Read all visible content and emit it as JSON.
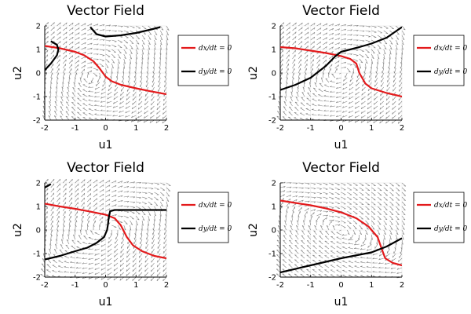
{
  "chart_data": [
    {
      "type": "line",
      "title": "Vector Field",
      "xlabel": "u1",
      "ylabel": "u2",
      "xlim": [
        -2,
        2
      ],
      "ylim": [
        -2,
        2
      ],
      "xticks": [
        "-2",
        "-1",
        "0",
        "1",
        "2"
      ],
      "yticks": [
        "-2",
        "-1",
        "0",
        "1",
        "2"
      ],
      "grid": true,
      "legend_position": "right",
      "legend": [
        "dx/dt = 0",
        "dy/dt = 0"
      ],
      "series": [
        {
          "name": "dx/dt = 0",
          "color": "#e31a1c",
          "x": [
            -2,
            -1.5,
            -1,
            -0.7,
            -0.4,
            -0.2,
            0,
            0.2,
            0.5,
            1,
            1.5,
            2
          ],
          "y": [
            1.15,
            1.05,
            0.9,
            0.75,
            0.5,
            0.2,
            -0.15,
            -0.35,
            -0.5,
            -0.65,
            -0.78,
            -0.9
          ]
        },
        {
          "name": "dy/dt = 0",
          "color": "#000000",
          "segments": [
            {
              "x": [
                -2,
                -1.8,
                -1.6,
                -1.55,
                -1.6,
                -1.8
              ],
              "y": [
                0.12,
                0.4,
                0.75,
                1.0,
                1.2,
                1.35
              ]
            },
            {
              "x": [
                -0.5,
                -0.3,
                0,
                0.5,
                1,
                1.5,
                1.8
              ],
              "y": [
                1.95,
                1.65,
                1.55,
                1.6,
                1.7,
                1.85,
                1.95
              ]
            }
          ]
        }
      ]
    },
    {
      "type": "line",
      "title": "Vector Field",
      "xlabel": "u1",
      "ylabel": "u2",
      "xlim": [
        -2,
        2
      ],
      "ylim": [
        -2,
        2
      ],
      "xticks": [
        "-2",
        "-1",
        "0",
        "1",
        "2"
      ],
      "yticks": [
        "-2",
        "-1",
        "0",
        "1",
        "2"
      ],
      "grid": true,
      "legend_position": "right",
      "legend": [
        "dx/dt = 0",
        "dy/dt = 0"
      ],
      "series": [
        {
          "name": "dx/dt = 0",
          "color": "#e31a1c",
          "x": [
            -2,
            -1.5,
            -1,
            -0.5,
            0,
            0.3,
            0.5,
            0.6,
            0.8,
            1,
            1.5,
            2
          ],
          "y": [
            1.1,
            1.05,
            0.95,
            0.85,
            0.72,
            0.6,
            0.4,
            0.0,
            -0.45,
            -0.65,
            -0.85,
            -1.0
          ]
        },
        {
          "name": "dy/dt = 0",
          "color": "#000000",
          "x": [
            -2,
            -1.5,
            -1,
            -0.5,
            -0.2,
            0,
            0.3,
            0.6,
            1,
            1.5,
            2
          ],
          "y": [
            -0.72,
            -0.5,
            -0.2,
            0.3,
            0.7,
            0.9,
            1.0,
            1.1,
            1.25,
            1.5,
            1.95
          ]
        }
      ]
    },
    {
      "type": "line",
      "title": "Vector Field",
      "xlabel": "u1",
      "ylabel": "u2",
      "xlim": [
        -2,
        2
      ],
      "ylim": [
        -2,
        2
      ],
      "xticks": [
        "-2",
        "-1",
        "0",
        "1",
        "2"
      ],
      "yticks": [
        "-2",
        "-1",
        "0",
        "1",
        "2"
      ],
      "grid": true,
      "legend_position": "right",
      "legend": [
        "dx/dt = 0",
        "dy/dt = 0"
      ],
      "series": [
        {
          "name": "dx/dt = 0",
          "color": "#e31a1c",
          "x": [
            -2,
            -1.5,
            -1,
            -0.5,
            0,
            0.3,
            0.5,
            0.7,
            0.9,
            1.2,
            1.6,
            2
          ],
          "y": [
            1.12,
            1.0,
            0.9,
            0.78,
            0.65,
            0.5,
            0.2,
            -0.3,
            -0.65,
            -0.9,
            -1.1,
            -1.2
          ]
        },
        {
          "name": "dy/dt = 0",
          "color": "#000000",
          "segments": [
            {
              "x": [
                -2,
                -1.5,
                -1,
                -0.6,
                -0.3,
                -0.05,
                0.05,
                0.08,
                0.1,
                0.15,
                0.3,
                0.6,
                1,
                1.5,
                2
              ],
              "y": [
                -1.25,
                -1.1,
                -0.9,
                -0.75,
                -0.55,
                -0.3,
                0.0,
                0.25,
                0.5,
                0.8,
                0.85,
                0.85,
                0.85,
                0.85,
                0.85
              ]
            },
            {
              "x": [
                -2,
                -1.8
              ],
              "y": [
                1.8,
                1.95
              ]
            }
          ]
        }
      ]
    },
    {
      "type": "line",
      "title": "Vector Field",
      "xlabel": "u1",
      "ylabel": "u2",
      "xlim": [
        -2,
        2
      ],
      "ylim": [
        -2,
        2
      ],
      "xticks": [
        "-2",
        "-1",
        "0",
        "1",
        "2"
      ],
      "yticks": [
        "-2",
        "-1",
        "0",
        "1",
        "2"
      ],
      "grid": true,
      "legend_position": "right",
      "legend": [
        "dx/dt = 0",
        "dy/dt = 0"
      ],
      "series": [
        {
          "name": "dx/dt = 0",
          "color": "#e31a1c",
          "x": [
            -2,
            -1.5,
            -1,
            -0.5,
            0,
            0.5,
            0.9,
            1.2,
            1.35,
            1.45,
            1.7,
            2
          ],
          "y": [
            1.25,
            1.15,
            1.05,
            0.92,
            0.75,
            0.5,
            0.15,
            -0.3,
            -0.85,
            -1.2,
            -1.4,
            -1.5
          ]
        },
        {
          "name": "dy/dt = 0",
          "color": "#000000",
          "x": [
            -2,
            -1,
            0,
            1,
            1.5,
            2
          ],
          "y": [
            -1.8,
            -1.5,
            -1.2,
            -0.95,
            -0.7,
            -0.35
          ]
        }
      ]
    }
  ]
}
